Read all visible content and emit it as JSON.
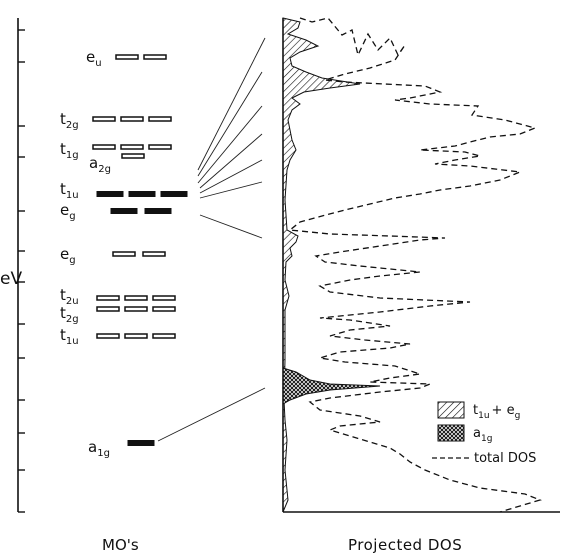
{
  "labels": {
    "y_axis": "eV",
    "mo_title": "MO's",
    "dos_title": "Projected  DOS"
  },
  "levels": [
    {
      "label": "e",
      "sub": "u",
      "n": 2,
      "filled": false
    },
    {
      "label": "t",
      "sub": "2g",
      "n": 3,
      "filled": false
    },
    {
      "label": "t",
      "sub": "1g",
      "n": 3,
      "filled": false
    },
    {
      "label": "a",
      "sub": "2g",
      "n": 1,
      "filled": false
    },
    {
      "label": "t",
      "sub": "1u",
      "n": 3,
      "filled": true
    },
    {
      "label": "e",
      "sub": "g",
      "n": 2,
      "filled": true
    },
    {
      "label": "e",
      "sub": "g",
      "n": 2,
      "filled": false
    },
    {
      "label": "t",
      "sub": "2u",
      "n": 3,
      "filled": false
    },
    {
      "label": "t",
      "sub": "2g",
      "n": 3,
      "filled": false
    },
    {
      "label": "t",
      "sub": "1u",
      "n": 3,
      "filled": false
    },
    {
      "label": "a",
      "sub": "1g",
      "n": 1,
      "filled": true
    }
  ],
  "legend": [
    {
      "pattern": "hatch",
      "label": "t",
      "sub": "1u",
      "suffix": "+ e",
      "suffix_sub": "g"
    },
    {
      "pattern": "crosshatch",
      "label": "a",
      "sub": "1g",
      "suffix": "",
      "suffix_sub": ""
    },
    {
      "pattern": "dashed",
      "label": "total DOS",
      "sub": "",
      "suffix": "",
      "suffix_sub": ""
    }
  ]
}
